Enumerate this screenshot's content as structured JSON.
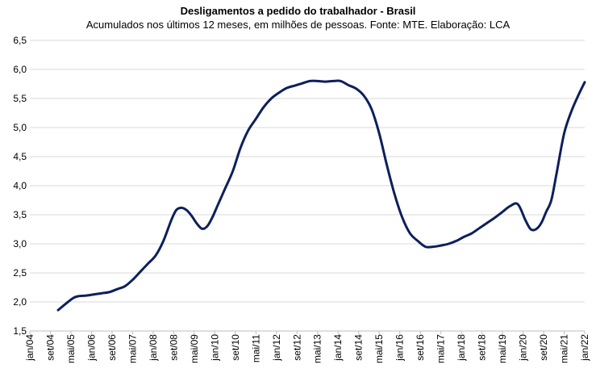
{
  "chart_data": {
    "type": "line",
    "title": "Desligamentos a pedido do trabalhador - Brasil",
    "subtitle": "Acumulados nos últimos 12 meses, em milhões de pessoas. Fonte: MTE. Elaboração: LCA",
    "xlabel": "",
    "ylabel": "",
    "ylim": [
      1.5,
      6.5
    ],
    "yticks": [
      1.5,
      2.0,
      2.5,
      3.0,
      3.5,
      4.0,
      4.5,
      5.0,
      5.5,
      6.0,
      6.5
    ],
    "ytick_labels": [
      "1,5",
      "2,0",
      "2,5",
      "3,0",
      "3,5",
      "4,0",
      "4,5",
      "5,0",
      "5,5",
      "6,0",
      "6,5"
    ],
    "xlim": [
      "2004-01",
      "2022-01"
    ],
    "xtick_labels": [
      "jan/04",
      "set/04",
      "mai/05",
      "jan/06",
      "set/06",
      "mai/07",
      "jan/08",
      "set/08",
      "mai/09",
      "jan/10",
      "set/10",
      "mai/11",
      "jan/12",
      "set/12",
      "mai/13",
      "jan/14",
      "set/14",
      "mai/15",
      "jan/16",
      "set/16",
      "mai/17",
      "jan/18",
      "set/18",
      "mai/19",
      "jan/20",
      "set/20",
      "mai/21",
      "jan/22"
    ],
    "xtick_dates": [
      "2004-01",
      "2004-09",
      "2005-05",
      "2006-01",
      "2006-09",
      "2007-05",
      "2008-01",
      "2008-09",
      "2009-05",
      "2010-01",
      "2010-09",
      "2011-05",
      "2012-01",
      "2012-09",
      "2013-05",
      "2014-01",
      "2014-09",
      "2015-05",
      "2016-01",
      "2016-09",
      "2017-05",
      "2018-01",
      "2018-09",
      "2019-05",
      "2020-01",
      "2020-09",
      "2021-05",
      "2022-01"
    ],
    "grid": "horizontal",
    "legend": "none",
    "line_color": "#0d1f5c",
    "series": [
      {
        "x": [
          "2004-12",
          "2005-03",
          "2005-06",
          "2005-08",
          "2005-11",
          "2006-02",
          "2006-05",
          "2006-08",
          "2006-11",
          "2007-02",
          "2007-05",
          "2007-08",
          "2007-11",
          "2008-02",
          "2008-05",
          "2008-08",
          "2008-10",
          "2008-12",
          "2009-02",
          "2009-04",
          "2009-06",
          "2009-08",
          "2009-10",
          "2009-12",
          "2010-02",
          "2010-05",
          "2010-08",
          "2010-11",
          "2011-02",
          "2011-05",
          "2011-08",
          "2011-11",
          "2012-02",
          "2012-05",
          "2012-08",
          "2012-11",
          "2013-02",
          "2013-05",
          "2013-08",
          "2013-11",
          "2014-02",
          "2014-05",
          "2014-08",
          "2014-11",
          "2015-02",
          "2015-05",
          "2015-08",
          "2015-11",
          "2016-02",
          "2016-05",
          "2016-08",
          "2016-11",
          "2017-02",
          "2017-05",
          "2017-08",
          "2017-11",
          "2018-02",
          "2018-05",
          "2018-08",
          "2018-11",
          "2019-02",
          "2019-05",
          "2019-08",
          "2019-11",
          "2020-02",
          "2020-04",
          "2020-06",
          "2020-08",
          "2020-10",
          "2020-12",
          "2021-02",
          "2021-05",
          "2021-08",
          "2021-11",
          "2022-01"
        ],
        "y": [
          1.86,
          1.97,
          2.07,
          2.1,
          2.11,
          2.13,
          2.15,
          2.17,
          2.22,
          2.27,
          2.38,
          2.52,
          2.66,
          2.8,
          3.05,
          3.4,
          3.58,
          3.62,
          3.58,
          3.48,
          3.35,
          3.26,
          3.3,
          3.45,
          3.65,
          3.95,
          4.25,
          4.65,
          4.95,
          5.15,
          5.35,
          5.5,
          5.6,
          5.68,
          5.72,
          5.76,
          5.8,
          5.8,
          5.79,
          5.8,
          5.8,
          5.73,
          5.67,
          5.55,
          5.32,
          4.9,
          4.35,
          3.85,
          3.45,
          3.18,
          3.05,
          2.95,
          2.95,
          2.97,
          3.0,
          3.05,
          3.12,
          3.18,
          3.27,
          3.36,
          3.45,
          3.55,
          3.65,
          3.68,
          3.4,
          3.25,
          3.25,
          3.35,
          3.55,
          3.75,
          4.2,
          4.9,
          5.3,
          5.6,
          5.78
        ]
      }
    ]
  }
}
